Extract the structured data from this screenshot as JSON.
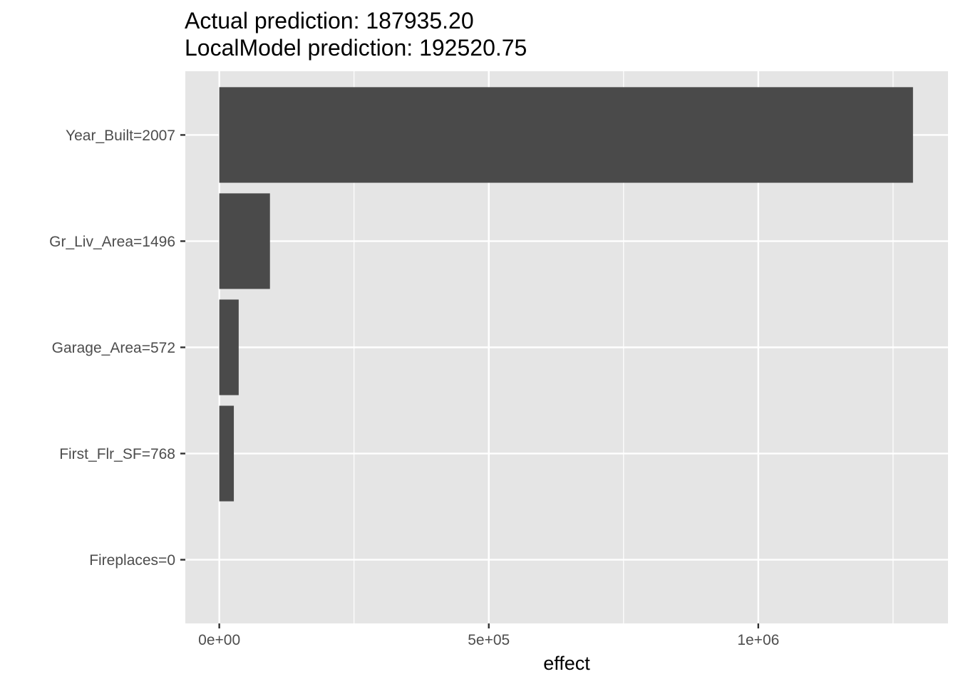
{
  "chart_data": {
    "type": "bar",
    "orientation": "horizontal",
    "title_lines": [
      "Actual prediction: 187935.20",
      "LocalModel prediction: 192520.75"
    ],
    "xlabel": "effect",
    "ylabel": "",
    "categories": [
      "Year_Built=2007",
      "Gr_Liv_Area=1496",
      "Garage_Area=572",
      "First_Flr_SF=768",
      "Fireplaces=0"
    ],
    "values": [
      1287000,
      94000,
      36000,
      27000,
      0
    ],
    "xlim": [
      -63000,
      1352000
    ],
    "x_ticks": [
      0,
      500000,
      1000000
    ],
    "x_tick_labels": [
      "0e+00",
      "5e+05",
      "1e+06"
    ],
    "x_minor_ticks": [
      250000,
      750000,
      1250000
    ],
    "grid": true,
    "legend": "none",
    "colors": {
      "bar": "#4a4a4a",
      "panel": "#e5e5e5",
      "grid": "#ffffff"
    }
  }
}
